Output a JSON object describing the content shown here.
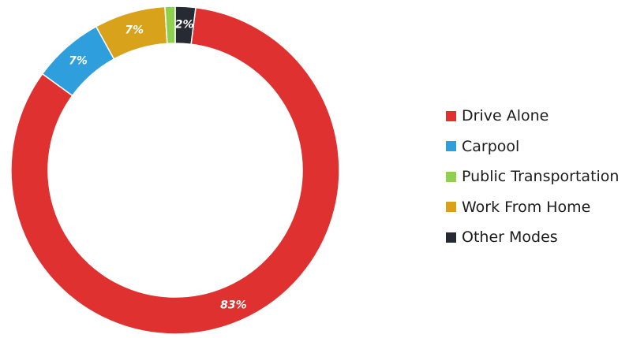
{
  "chart_data": {
    "type": "pie",
    "title": "",
    "categories": [
      "Drive Alone",
      "Carpool",
      "Public Transportation",
      "Work From Home",
      "Other Modes"
    ],
    "values": [
      83,
      7,
      1,
      7,
      2
    ],
    "labels": [
      "83%",
      "7%",
      "",
      "7%",
      "2%"
    ],
    "colors": [
      "#e03131",
      "#2e9fdc",
      "#8fd14f",
      "#d9a21b",
      "#262a33"
    ],
    "legend_placement": "right",
    "donut": true
  }
}
